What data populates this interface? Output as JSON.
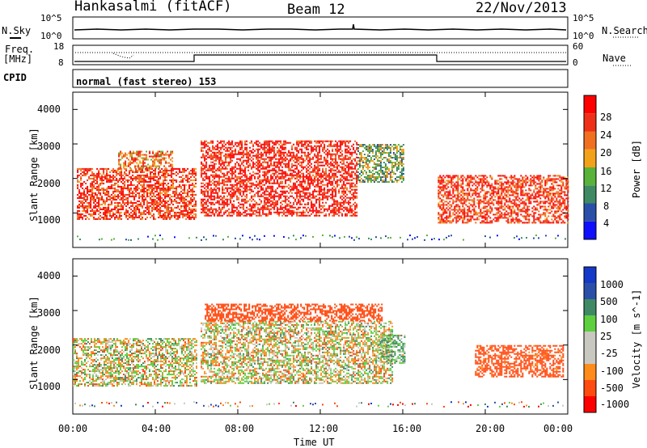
{
  "header": {
    "title": "Hankasalmi (fitACF)",
    "beam": "Beam 12",
    "date": "22/Nov/2013"
  },
  "panels": {
    "sky_label": "N.Sky",
    "search_label": "N.Search",
    "freq_label_1": "Freq.",
    "freq_label_2": "[MHz]",
    "nave_label": "Nave",
    "cpid_label": "CPID",
    "cpid_text": "normal (fast stereo) 153",
    "sky_ticks": [
      "10^5",
      "10^0"
    ],
    "search_ticks": [
      "10^5",
      "10^0"
    ],
    "freq_ticks": [
      "18",
      "8"
    ],
    "nave_ticks": [
      "60",
      "0"
    ]
  },
  "colors": {
    "power": [
      "#1010ff",
      "#2a4fa8",
      "#3f8a64",
      "#59b23a",
      "#f2a21a",
      "#f07020",
      "#ee3018",
      "#ff0000"
    ],
    "velocity": [
      "#ff0000",
      "#ff4a10",
      "#ff8c1a",
      "#c8c8c0",
      "#c8c8c0",
      "#5ed040",
      "#3f8a64",
      "#2a4fa8",
      "#1438c8"
    ],
    "background": "#ffffff"
  },
  "chart_data": [
    {
      "type": "heatmap",
      "title": "Power",
      "xlabel": "",
      "ylabel": "Slant Range [km]",
      "xlim": [
        "00:00",
        "24:00"
      ],
      "ylim": [
        0,
        4500
      ],
      "x_ticks": [
        "00:00",
        "04:00",
        "08:00",
        "12:00",
        "16:00",
        "20:00",
        "00:00"
      ],
      "y_ticks": [
        "1000",
        "2000",
        "3000",
        "4000"
      ],
      "colorbar": {
        "label": "Power [dB]",
        "ticks": [
          "4",
          "8",
          "12",
          "16",
          "20",
          "24",
          "28"
        ],
        "range": [
          0,
          30
        ]
      },
      "regions": [
        {
          "t_start": 0.2,
          "t_end": 6.0,
          "r_min": 800,
          "r_max": 2300,
          "level": 24
        },
        {
          "t_start": 2.2,
          "t_end": 4.8,
          "r_min": 2300,
          "r_max": 2800,
          "level": 20
        },
        {
          "t_start": 6.2,
          "t_end": 13.8,
          "r_min": 900,
          "r_max": 3100,
          "level": 26
        },
        {
          "t_start": 13.8,
          "t_end": 16.0,
          "r_min": 1900,
          "r_max": 3000,
          "level": 12
        },
        {
          "t_start": 17.7,
          "t_end": 24.0,
          "r_min": 700,
          "r_max": 2100,
          "level": 24
        }
      ]
    },
    {
      "type": "heatmap",
      "title": "Velocity",
      "xlabel": "Time UT",
      "ylabel": "Slant Range [km]",
      "xlim": [
        "00:00",
        "24:00"
      ],
      "ylim": [
        0,
        4500
      ],
      "x_ticks": [
        "00:00",
        "04:00",
        "08:00",
        "12:00",
        "16:00",
        "20:00",
        "00:00"
      ],
      "y_ticks": [
        "1000",
        "2000",
        "3000",
        "4000"
      ],
      "colorbar": {
        "label": "Velocity [m s^-1]",
        "ticks": [
          "1000",
          "500",
          "100",
          "25",
          "-25",
          "-100",
          "-500",
          "-1000"
        ],
        "range": [
          -1000,
          1000
        ]
      },
      "regions": [
        {
          "t_start": 0.0,
          "t_end": 6.0,
          "r_min": 800,
          "r_max": 2200,
          "level": 0
        },
        {
          "t_start": 6.2,
          "t_end": 15.5,
          "r_min": 900,
          "r_max": 2700,
          "level": 0
        },
        {
          "t_start": 14.8,
          "t_end": 16.1,
          "r_min": 1500,
          "r_max": 2300,
          "level": 100
        },
        {
          "t_start": 6.4,
          "t_end": 15.0,
          "r_min": 2700,
          "r_max": 3200,
          "level": -300
        },
        {
          "t_start": 19.5,
          "t_end": 23.8,
          "r_min": 1100,
          "r_max": 2000,
          "level": -200
        }
      ]
    }
  ]
}
